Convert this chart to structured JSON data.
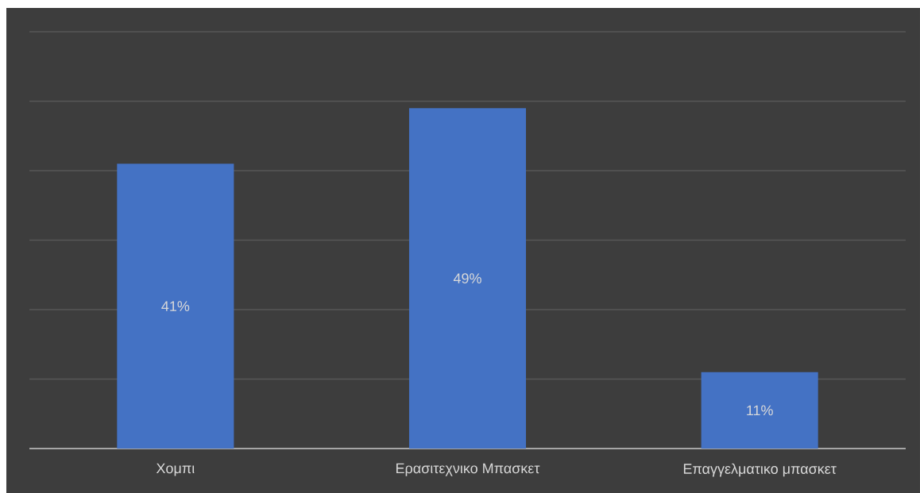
{
  "chart_data": {
    "type": "bar",
    "categories": [
      "Χομπι",
      "Ερασιτεχνικο Μπασκετ",
      "Επαγγελματικο μπασκετ"
    ],
    "values": [
      41,
      49,
      11
    ],
    "value_labels": [
      "41%",
      "49%",
      "11%"
    ],
    "color": "#4472c4",
    "ylim": [
      0,
      60
    ],
    "yticks": [
      {
        "value": 0,
        "label": null
      },
      {
        "value": 10,
        "label": null
      },
      {
        "value": 20,
        "label": null
      },
      {
        "value": 30,
        "label": null
      },
      {
        "value": 40,
        "label": null
      },
      {
        "value": 50,
        "label": null
      },
      {
        "value": 60,
        "label": null
      }
    ],
    "grid": "y",
    "tick_labels": "x"
  }
}
